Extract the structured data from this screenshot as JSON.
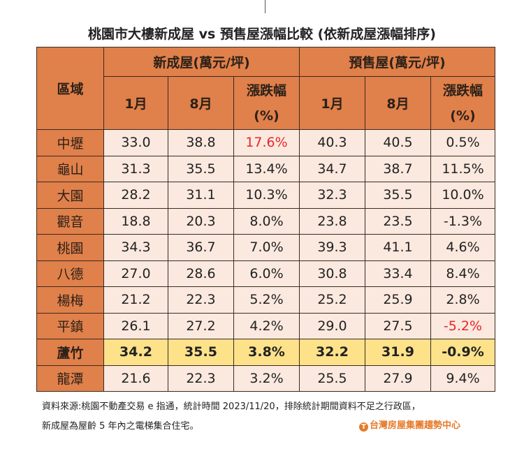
{
  "title": "桃園市大樓新成屋 vs 預售屋漲幅比較 (依新成屋漲幅排序)",
  "header": {
    "area": "區域",
    "group_new": "新成屋(萬元/坪)",
    "group_presale": "預售屋(萬元/坪)",
    "jan": "1月",
    "aug": "8月",
    "change_line1": "漲跌幅",
    "change_line2": "(%)"
  },
  "rows": [
    {
      "area": "中壢",
      "new_jan": "33.0",
      "new_aug": "38.8",
      "new_chg": "17.6%",
      "pre_jan": "40.3",
      "pre_aug": "40.5",
      "pre_chg": "0.5%"
    },
    {
      "area": "龜山",
      "new_jan": "31.3",
      "new_aug": "35.5",
      "new_chg": "13.4%",
      "pre_jan": "34.7",
      "pre_aug": "38.7",
      "pre_chg": "11.5%"
    },
    {
      "area": "大園",
      "new_jan": "28.2",
      "new_aug": "31.1",
      "new_chg": "10.3%",
      "pre_jan": "32.3",
      "pre_aug": "35.5",
      "pre_chg": "10.0%"
    },
    {
      "area": "觀音",
      "new_jan": "18.8",
      "new_aug": "20.3",
      "new_chg": "8.0%",
      "pre_jan": "23.8",
      "pre_aug": "23.5",
      "pre_chg": "-1.3%"
    },
    {
      "area": "桃園",
      "new_jan": "34.3",
      "new_aug": "36.7",
      "new_chg": "7.0%",
      "pre_jan": "39.3",
      "pre_aug": "41.1",
      "pre_chg": "4.6%"
    },
    {
      "area": "八德",
      "new_jan": "27.0",
      "new_aug": "28.6",
      "new_chg": "6.0%",
      "pre_jan": "30.8",
      "pre_aug": "33.4",
      "pre_chg": "8.4%"
    },
    {
      "area": "楊梅",
      "new_jan": "21.2",
      "new_aug": "22.3",
      "new_chg": "5.2%",
      "pre_jan": "25.2",
      "pre_aug": "25.9",
      "pre_chg": "2.8%"
    },
    {
      "area": "平鎮",
      "new_jan": "26.1",
      "new_aug": "27.2",
      "new_chg": "4.2%",
      "pre_jan": "29.0",
      "pre_aug": "27.5",
      "pre_chg": "-5.2%"
    },
    {
      "area": "蘆竹",
      "new_jan": "34.2",
      "new_aug": "35.5",
      "new_chg": "3.8%",
      "pre_jan": "32.2",
      "pre_aug": "31.9",
      "pre_chg": "-0.9%"
    },
    {
      "area": "龍潭",
      "new_jan": "21.6",
      "new_aug": "22.3",
      "new_chg": "3.2%",
      "pre_jan": "25.5",
      "pre_aug": "27.9",
      "pre_chg": "9.4%"
    }
  ],
  "highlight": {
    "max_new_row": 0,
    "min_pre_row": 7,
    "highlighted_row": 8,
    "red": "#E8262A",
    "header_bg": "#E0804A",
    "cell_bg": "#FBE9DF",
    "highlight_bg": "#FDE28A"
  },
  "footer": {
    "line1": "資料來源:桃園不動產交易 e 指通，統計時間 2023/11/20，排除統計期間資料不足之行政區，",
    "line2": "新成屋為屋齡 5 年內之電梯集合住宅。",
    "logo": "台灣房屋集團趨勢中心"
  }
}
